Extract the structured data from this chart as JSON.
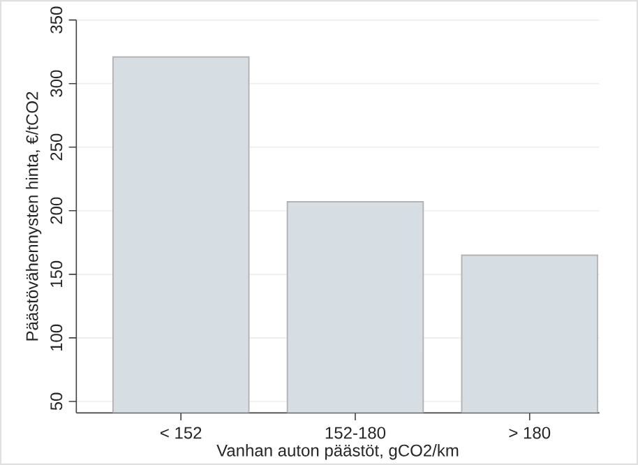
{
  "chart_data": {
    "type": "bar",
    "xlabel": "Vanhan auton päästöt, gCO2/km",
    "ylabel": "Päästövähennysten hinta, €/tCO2",
    "categories": [
      "< 152",
      "152-180",
      "> 180"
    ],
    "values": [
      321,
      207,
      165
    ],
    "color": "#d6dde3",
    "ylim": [
      41,
      350
    ],
    "yticks": [
      50,
      100,
      150,
      200,
      250,
      300,
      350
    ],
    "grid": "y"
  }
}
